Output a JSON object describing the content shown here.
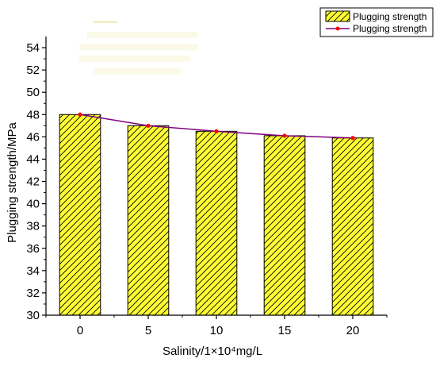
{
  "chart_data": {
    "type": "bar",
    "categories": [
      "0",
      "5",
      "10",
      "15",
      "20"
    ],
    "series": [
      {
        "name": "Plugging strength",
        "kind": "bar",
        "values": [
          48.0,
          47.0,
          46.5,
          46.1,
          45.9
        ]
      },
      {
        "name": "Plugging strength",
        "kind": "line",
        "values": [
          48.0,
          47.0,
          46.5,
          46.1,
          45.9
        ]
      }
    ],
    "xlabel": "Salinity/1×10⁴mg/L",
    "ylabel": "Plugging strength/MPa",
    "ylim": [
      30,
      55
    ],
    "yticks": [
      "30",
      "32",
      "34",
      "36",
      "38",
      "40",
      "42",
      "44",
      "46",
      "48",
      "50",
      "52",
      "54"
    ],
    "grid": false,
    "legend_position": "top-right",
    "colors": {
      "bar_fill": "#ffff33",
      "bar_hatch": "#000000",
      "line": "#800080",
      "marker": "#ff0000"
    }
  }
}
